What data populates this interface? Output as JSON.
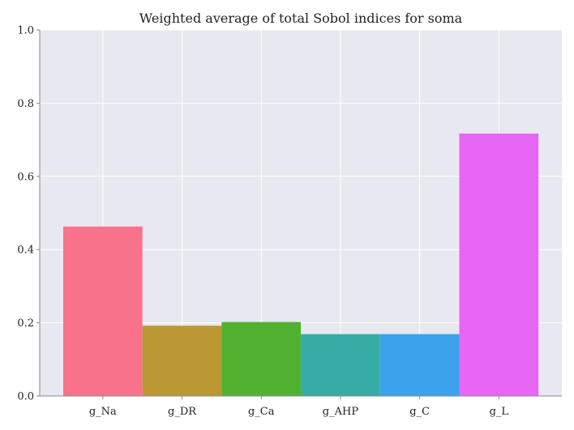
{
  "chart_data": {
    "type": "bar",
    "title": "Weighted average of total Sobol indices for soma",
    "xlabel": "",
    "ylabel": "",
    "categories": [
      "g_Na",
      "g_DR",
      "g_Ca",
      "g_AHP",
      "g_C",
      "g_L"
    ],
    "values": [
      0.463,
      0.192,
      0.202,
      0.169,
      0.169,
      0.717
    ],
    "colors": [
      "#f7728a",
      "#bb9834",
      "#50b131",
      "#36ada4",
      "#3ba3ec",
      "#e766f5"
    ],
    "ylim": [
      0.0,
      1.0
    ],
    "yticks": [
      0.0,
      0.2,
      0.4,
      0.6,
      0.8,
      1.0
    ],
    "ytick_labels": [
      "0.0",
      "0.2",
      "0.4",
      "0.6",
      "0.8",
      "1.0"
    ],
    "grid": true,
    "background": "#e8e9f0",
    "legend": "none"
  }
}
